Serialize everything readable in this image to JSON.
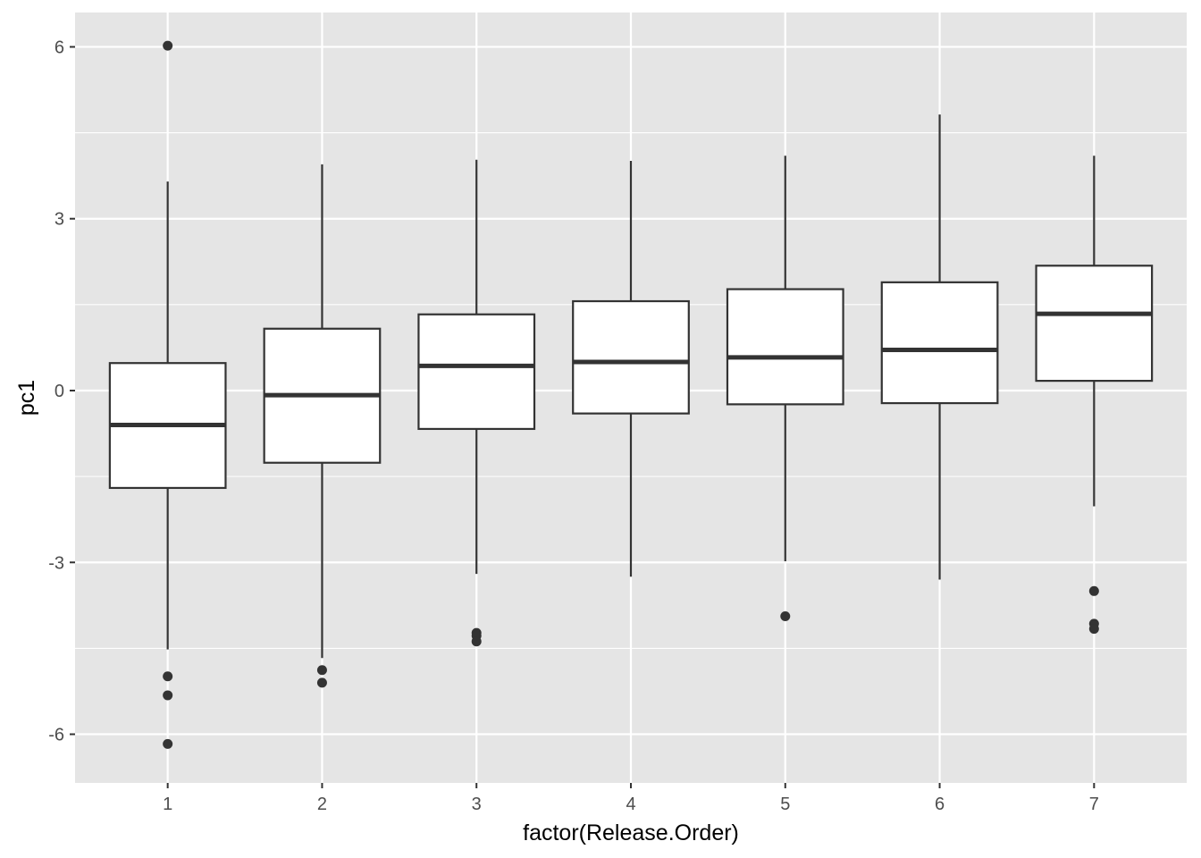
{
  "chart_data": {
    "type": "box",
    "xlabel": "factor(Release.Order)",
    "ylabel": "pc1",
    "ylim": [
      -6.85,
      6.6
    ],
    "yticks": [
      -6,
      -3,
      0,
      3,
      6
    ],
    "ytick_labels": [
      "-6",
      "-3",
      "0",
      "3",
      "6"
    ],
    "minor_yticks": [
      -4.5,
      -1.5,
      1.5,
      4.5
    ],
    "grid": true,
    "categories": [
      "1",
      "2",
      "3",
      "4",
      "5",
      "6",
      "7"
    ],
    "boxes": [
      {
        "category": "1",
        "whisker_low": -4.52,
        "q1": -1.7,
        "median": -0.6,
        "q3": 0.48,
        "whisker_high": 3.65,
        "outliers": [
          6.02,
          -4.99,
          -5.32,
          -6.17
        ]
      },
      {
        "category": "2",
        "whisker_low": -4.67,
        "q1": -1.26,
        "median": -0.08,
        "q3": 1.08,
        "whisker_high": 3.95,
        "outliers": [
          -4.88,
          -5.1
        ]
      },
      {
        "category": "3",
        "whisker_low": -3.2,
        "q1": -0.67,
        "median": 0.43,
        "q3": 1.33,
        "whisker_high": 4.03,
        "outliers": [
          -4.23,
          -4.28,
          -4.38
        ]
      },
      {
        "category": "4",
        "whisker_low": -3.25,
        "q1": -0.4,
        "median": 0.5,
        "q3": 1.56,
        "whisker_high": 4.01,
        "outliers": []
      },
      {
        "category": "5",
        "whisker_low": -2.98,
        "q1": -0.24,
        "median": 0.58,
        "q3": 1.77,
        "whisker_high": 4.1,
        "outliers": [
          -3.94
        ]
      },
      {
        "category": "6",
        "whisker_low": -3.3,
        "q1": -0.22,
        "median": 0.71,
        "q3": 1.89,
        "whisker_high": 4.82,
        "outliers": []
      },
      {
        "category": "7",
        "whisker_low": -2.02,
        "q1": 0.17,
        "median": 1.34,
        "q3": 2.18,
        "whisker_high": 4.1,
        "outliers": [
          -3.5,
          -4.07,
          -4.16
        ]
      }
    ],
    "colors": {
      "panel": "#e5e5e5",
      "grid": "#ffffff",
      "box_fill": "#ffffff",
      "box_line": "#333333",
      "point": "#333333"
    }
  }
}
